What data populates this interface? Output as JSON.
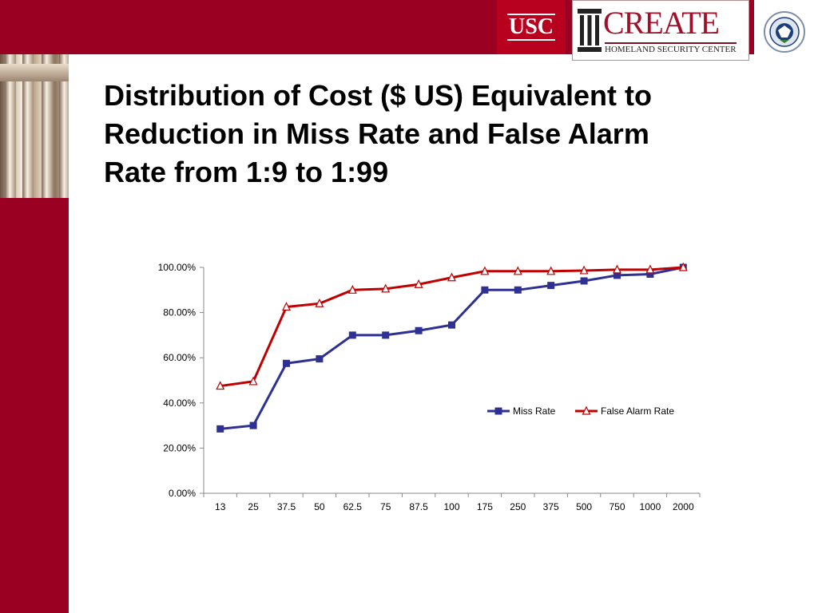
{
  "header": {
    "usc_logo_text": "USC",
    "create_logo_text": "CREATE",
    "create_subtitle": "HOMELAND SECURITY CENTER",
    "seal_icon": "dhs-seal-icon"
  },
  "colors": {
    "brand_red": "#990022",
    "miss_rate": "#2e3192",
    "false_alarm_rate": "#c00000"
  },
  "slide": {
    "title_lines": [
      "Distribution of Cost ($ US) Equivalent to",
      "Reduction in Miss Rate and False Alarm",
      "Rate from 1:9 to 1:99"
    ]
  },
  "chart_data": {
    "type": "line",
    "categories": [
      "13",
      "25",
      "37.5",
      "50",
      "62.5",
      "75",
      "87.5",
      "100",
      "175",
      "250",
      "375",
      "500",
      "750",
      "1000",
      "2000"
    ],
    "series": [
      {
        "name": "Miss Rate",
        "marker": "square",
        "values": [
          0.285,
          0.3,
          0.575,
          0.595,
          0.7,
          0.7,
          0.72,
          0.745,
          0.9,
          0.9,
          0.92,
          0.94,
          0.965,
          0.97,
          1.0
        ]
      },
      {
        "name": "False Alarm Rate",
        "marker": "triangle",
        "values": [
          0.475,
          0.495,
          0.825,
          0.84,
          0.9,
          0.905,
          0.925,
          0.955,
          0.983,
          0.983,
          0.983,
          0.986,
          0.99,
          0.99,
          1.0
        ]
      }
    ],
    "yticks": [
      "0.00%",
      "20.00%",
      "40.00%",
      "60.00%",
      "80.00%",
      "100.00%"
    ],
    "ylim": [
      0,
      1
    ],
    "grid": false,
    "legend_position": "right"
  }
}
